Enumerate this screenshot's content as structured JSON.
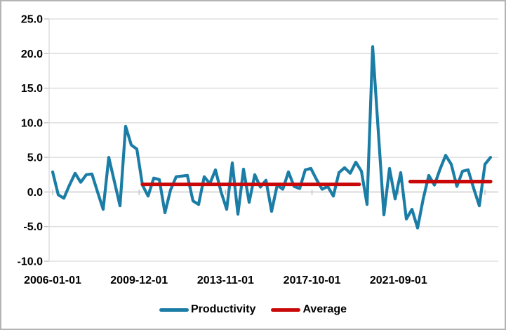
{
  "chart_data": {
    "type": "line",
    "title": "",
    "grid": "horizontal-only",
    "x_axis": {
      "tick_labels": [
        "2006-01-01",
        "2009-12-01",
        "2013-11-01",
        "2017-10-01",
        "2021-09-01"
      ],
      "start_date": "2006-01-01",
      "frequency": "quarterly"
    },
    "y_axis": {
      "tick_labels": [
        "25.0",
        "20.0",
        "15.0",
        "10.0",
        "5.0",
        "0.0",
        "-5.0",
        "-10.0"
      ],
      "min": -10,
      "max": 25,
      "step": 5
    },
    "series": [
      {
        "name": "Productivity",
        "color": "#1b7da6",
        "values": [
          2.9,
          -0.4,
          -0.9,
          1.0,
          2.7,
          1.4,
          2.5,
          2.6,
          0.0,
          -2.5,
          5.0,
          1.5,
          -2.0,
          9.5,
          6.8,
          6.2,
          1.0,
          -0.6,
          2.0,
          1.8,
          -3.0,
          0.3,
          2.2,
          2.3,
          2.4,
          -1.3,
          -1.8,
          2.2,
          1.2,
          3.2,
          0.0,
          -2.5,
          4.2,
          -3.2,
          3.3,
          -1.5,
          2.5,
          0.7,
          1.7,
          -2.8,
          1.0,
          0.4,
          2.9,
          0.8,
          0.5,
          3.2,
          3.4,
          1.8,
          0.4,
          0.8,
          -0.6,
          2.8,
          3.5,
          2.7,
          4.3,
          3.0,
          -1.8,
          21.0,
          8.8,
          -3.3,
          3.4,
          -1.0,
          2.8,
          -3.9,
          -2.5,
          -5.2,
          -1.0,
          2.4,
          1.0,
          3.3,
          5.3,
          4.0,
          0.8,
          3.0,
          3.2,
          0.5,
          -2.0,
          4.0,
          5.0
        ]
      },
      {
        "name": "Average",
        "color": "#c90909",
        "segments": [
          {
            "value": 1.1,
            "from_index": 16,
            "to_index": 54.6
          },
          {
            "value": 1.5,
            "from_index": 63.7,
            "to_index": 78
          }
        ]
      }
    ],
    "legend_position": "bottom"
  },
  "legend": {
    "items": [
      {
        "label": "Productivity",
        "color": "#1b7da6"
      },
      {
        "label": "Average",
        "color": "#c90909"
      }
    ]
  },
  "colors": {
    "productivity_line": "#1b7da6",
    "average_line": "#c90909",
    "gridline": "#d9d9d9",
    "axis": "#bfbfbf",
    "text": "#000000",
    "border": "#b4b4b4"
  }
}
